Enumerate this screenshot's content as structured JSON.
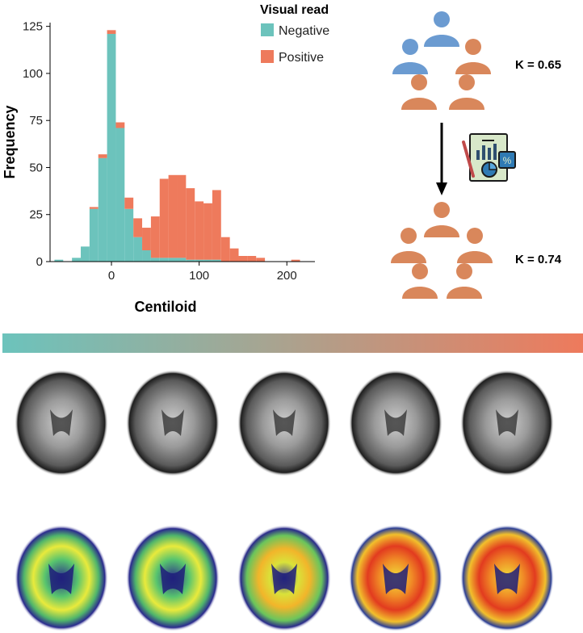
{
  "chart_data": {
    "type": "bar",
    "stacked": true,
    "xlabel": "Centiloid",
    "ylabel": "Frequency",
    "xlim": [
      -70,
      232
    ],
    "ylim": [
      0,
      127
    ],
    "x_ticks": [
      0,
      100,
      200
    ],
    "y_ticks": [
      0,
      25,
      50,
      75,
      100,
      125
    ],
    "bin_width": 10,
    "bin_centers": [
      -60,
      -50,
      -40,
      -30,
      -20,
      -10,
      0,
      10,
      20,
      30,
      40,
      50,
      60,
      70,
      80,
      90,
      100,
      110,
      120,
      130,
      140,
      150,
      160,
      170,
      180,
      190,
      200,
      210
    ],
    "series": [
      {
        "name": "Negative",
        "color": "#6cc3bc",
        "values": [
          1,
          0,
          2,
          8,
          28,
          55,
          121,
          71,
          28,
          13,
          6,
          2,
          2,
          2,
          2,
          1,
          1,
          1,
          1,
          0,
          0,
          0,
          0,
          0,
          0,
          0,
          0,
          0
        ]
      },
      {
        "name": "Positive",
        "color": "#ee7a5c",
        "values": [
          0,
          0,
          0,
          0,
          1,
          2,
          2,
          3,
          6,
          10,
          12,
          22,
          42,
          44,
          44,
          38,
          31,
          30,
          37,
          13,
          7,
          3,
          3,
          2,
          0,
          0,
          0,
          1
        ]
      }
    ],
    "legend_title": "Visual read",
    "legend_position": "top-right"
  },
  "agreement": {
    "before": {
      "label": "K = 0.65"
    },
    "after": {
      "label": "K = 0.74"
    }
  },
  "colors": {
    "negative": "#6cc3bc",
    "positive": "#ee7a5c",
    "reader_blue": "#6b9bd1",
    "reader_orange": "#d9875b"
  },
  "icons": {
    "report": "report-with-charts-icon",
    "reader": "person-icon"
  }
}
